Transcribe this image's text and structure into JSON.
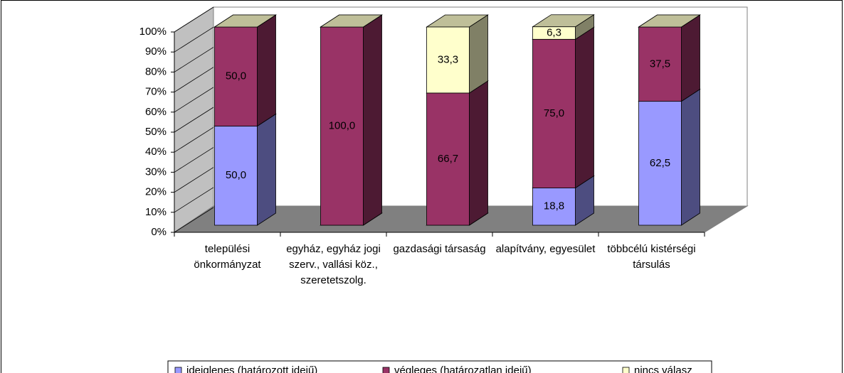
{
  "chart_data": {
    "type": "bar",
    "stacked": true,
    "categories": [
      "települési önkormányzat",
      "egyház, egyház jogi szerv., vallási köz., szeretetszolg.",
      "gazdasági társaság",
      "alapítvány, egyesület",
      "többcélú kistérségi társulás"
    ],
    "series": [
      {
        "name": "ideiglenes (határozott idejű)",
        "color": "#9999ff",
        "values": [
          50.0,
          0,
          0,
          18.8,
          62.5
        ],
        "value_labels": [
          "50,0",
          null,
          null,
          "18,8",
          "62,5"
        ]
      },
      {
        "name": "végleges (határozatlan idejű)",
        "color": "#993366",
        "values": [
          50.0,
          100.0,
          66.7,
          75.0,
          37.5
        ],
        "value_labels": [
          "50,0",
          "100,0",
          "66,7",
          "75,0",
          "37,5"
        ]
      },
      {
        "name": "nincs válasz",
        "color": "#ffffcc",
        "values": [
          0,
          0,
          33.3,
          6.3,
          0
        ],
        "value_labels": [
          null,
          null,
          "33,3",
          "6,3",
          null
        ]
      }
    ],
    "ylim": [
      0,
      100
    ],
    "yticks": [
      {
        "value": 0,
        "label": "0%"
      },
      {
        "value": 10,
        "label": "10%"
      },
      {
        "value": 20,
        "label": "20%"
      },
      {
        "value": 30,
        "label": "30%"
      },
      {
        "value": 40,
        "label": "40%"
      },
      {
        "value": 50,
        "label": "50%"
      },
      {
        "value": 60,
        "label": "60%"
      },
      {
        "value": 70,
        "label": "70%"
      },
      {
        "value": 80,
        "label": "80%"
      },
      {
        "value": 90,
        "label": "90%"
      },
      {
        "value": 100,
        "label": "100%"
      }
    ],
    "legend": "bottom"
  }
}
